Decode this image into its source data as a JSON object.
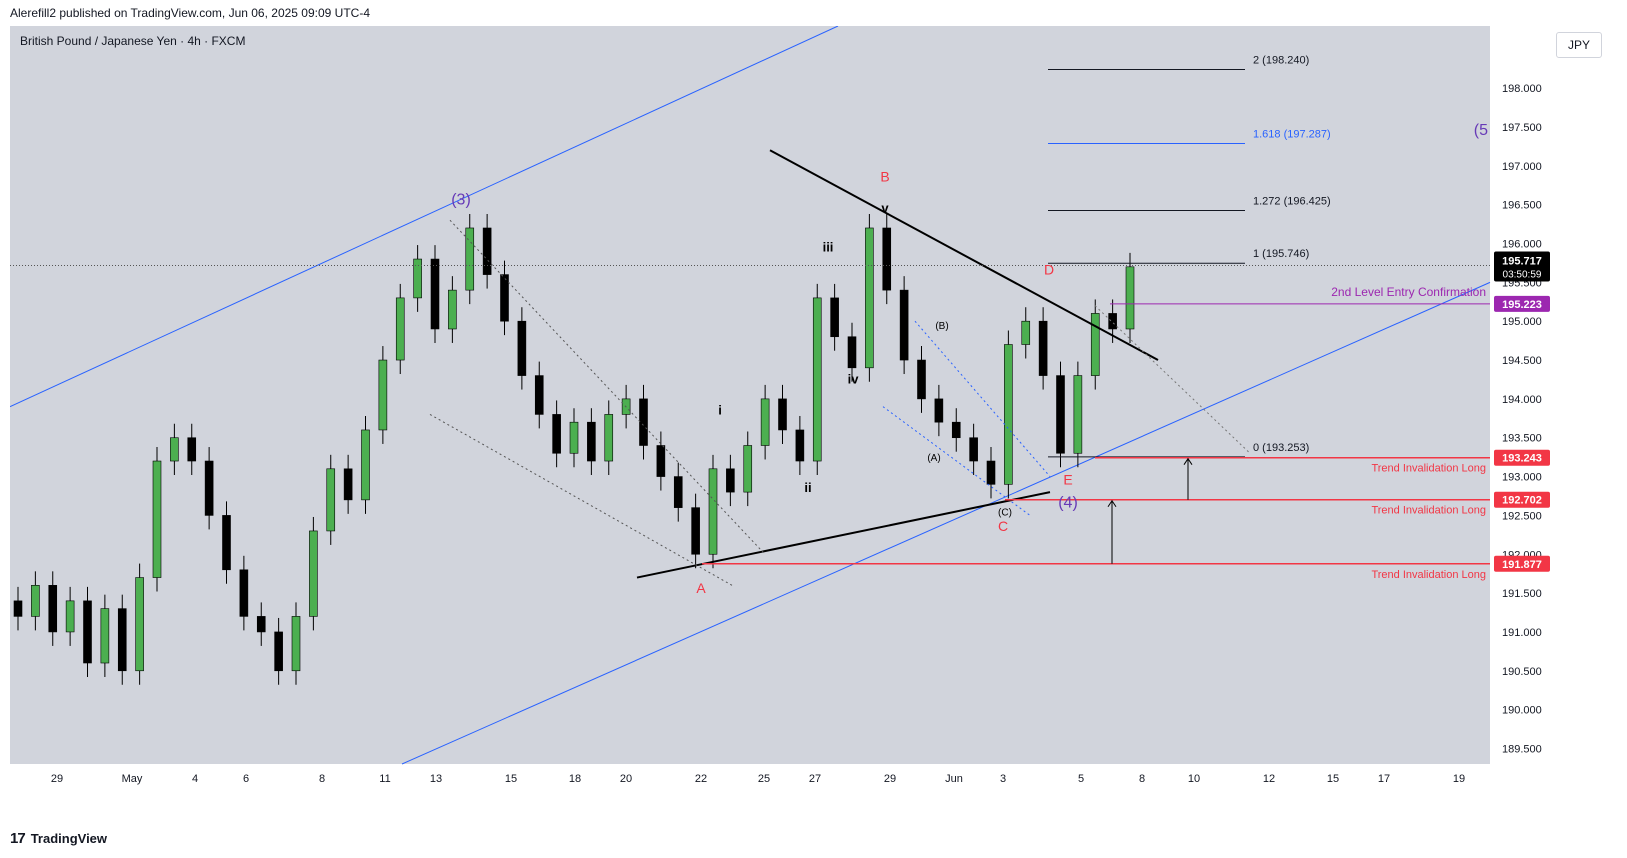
{
  "publisher_line": "Alerefill2 published on TradingView.com, Jun 06, 2025 09:09 UTC-4",
  "symbol_title": "British Pound / Japanese Yen · 4h · FXCM",
  "currency": "JPY",
  "brand": {
    "logo": "17",
    "name": "TradingView"
  },
  "colors": {
    "background": "#d1d4dc",
    "up": "#4caf50",
    "down": "#000000",
    "channel": "#2962ff",
    "invalidation": "#f23645",
    "confirmation": "#9c27b0",
    "wave_label": "#673ab7",
    "abc_label": "#f23645"
  },
  "chart_data": {
    "type": "candlestick",
    "title": "British Pound / Japanese Yen · 4h · FXCM",
    "ylim": [
      189.3,
      198.8
    ],
    "y_ticks": [
      "198.000",
      "197.500",
      "197.000",
      "196.500",
      "196.000",
      "195.500",
      "195.000",
      "194.500",
      "194.000",
      "193.500",
      "193.000",
      "192.500",
      "192.000",
      "191.500",
      "191.000",
      "190.500",
      "190.000",
      "189.500"
    ],
    "x_ticks": [
      "29",
      "May",
      "4",
      "6",
      "8",
      "11",
      "13",
      "15",
      "18",
      "20",
      "22",
      "25",
      "27",
      "29",
      "Jun",
      "3",
      "5",
      "8",
      "10",
      "12",
      "15",
      "17",
      "19"
    ],
    "last_price": "195.717",
    "countdown": "03:50:59",
    "closes": [
      191.2,
      191.6,
      191.0,
      191.4,
      190.6,
      191.3,
      190.5,
      191.7,
      193.2,
      193.5,
      193.2,
      192.5,
      191.8,
      191.2,
      191.0,
      190.5,
      191.2,
      192.3,
      193.1,
      192.7,
      193.6,
      194.5,
      195.3,
      195.8,
      194.9,
      195.4,
      196.2,
      195.6,
      195.0,
      194.3,
      193.8,
      193.3,
      193.7,
      193.2,
      193.8,
      194.0,
      193.4,
      193.0,
      192.6,
      192.0,
      193.1,
      192.8,
      193.4,
      194.0,
      193.6,
      193.2,
      195.3,
      194.8,
      194.4,
      196.2,
      195.4,
      194.5,
      194.0,
      193.7,
      193.5,
      193.2,
      192.9,
      194.7,
      195.0,
      194.3,
      193.3,
      194.3,
      195.1,
      194.9,
      195.7
    ],
    "series": [
      {
        "name": "Trend Invalidation Long",
        "values": [
          193.243
        ]
      },
      {
        "name": "Trend Invalidation Long",
        "values": [
          192.702
        ]
      },
      {
        "name": "Trend Invalidation Long",
        "values": [
          191.877
        ]
      },
      {
        "name": "2nd Level Entry Confirmation",
        "values": [
          195.223
        ]
      }
    ],
    "price_badges": [
      {
        "label": "195.223",
        "value": 195.223,
        "color": "#9c27b0"
      },
      {
        "label": "193.243",
        "value": 193.243,
        "color": "#f23645"
      },
      {
        "label": "192.702",
        "value": 192.702,
        "color": "#f23645"
      },
      {
        "label": "191.877",
        "value": 191.877,
        "color": "#f23645"
      }
    ],
    "fib_levels": [
      {
        "label": "2 (198.240)",
        "value": 198.24,
        "color": "#131722"
      },
      {
        "label": "1.618 (197.287)",
        "value": 197.287,
        "color": "#2962ff"
      },
      {
        "label": "1.272 (196.425)",
        "value": 196.425,
        "color": "#131722"
      },
      {
        "label": "1 (195.746)",
        "value": 195.746,
        "color": "#131722"
      },
      {
        "label": "0 (193.253)",
        "value": 193.253,
        "color": "#131722"
      }
    ],
    "annotations": {
      "wave3": "(3)",
      "wave4": "(4)",
      "wave5": "(5",
      "a": "A",
      "b": "B",
      "c": "C",
      "d": "D",
      "e": "E",
      "i": "i",
      "ii": "ii",
      "iii": "iii",
      "iv": "iv",
      "v": "v",
      "sub_a": "(A)",
      "sub_b": "(B)",
      "sub_c": "(C)",
      "confirmation": "2nd Level Entry Confirmation",
      "invalidation": "Trend Invalidation Long"
    }
  }
}
